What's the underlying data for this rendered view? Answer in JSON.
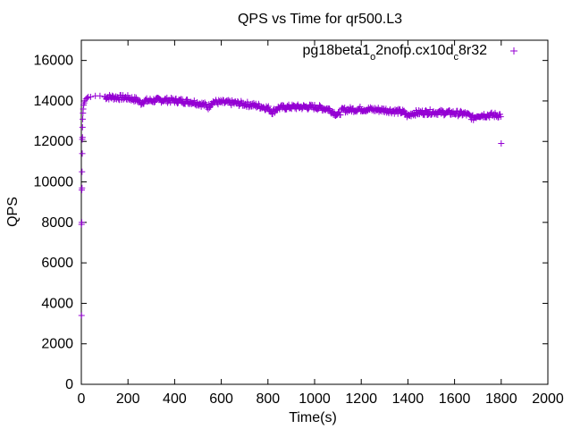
{
  "chart_data": {
    "type": "scatter",
    "title": "QPS vs Time for qr500.L3",
    "xlabel": "Time(s)",
    "ylabel": "QPS",
    "xlim": [
      0,
      2000
    ],
    "ylim": [
      0,
      17000
    ],
    "x_ticks": [
      0,
      200,
      400,
      600,
      800,
      1000,
      1200,
      1400,
      1600,
      1800,
      2000
    ],
    "y_ticks": [
      0,
      2000,
      4000,
      6000,
      8000,
      10000,
      12000,
      14000,
      16000
    ],
    "grid": false,
    "legend_position": "top-right",
    "legend_label_parts": [
      "pg18beta1",
      "o",
      "2nofp.cx10d",
      "c",
      "8r32"
    ],
    "series": [
      {
        "name": "pg18beta1_o2nofp.cx10d_c8r32",
        "color": "#9400d3",
        "marker": "+",
        "startup_points": [
          [
            1,
            3400
          ],
          [
            1,
            7900
          ],
          [
            2,
            8000
          ],
          [
            2,
            9600
          ],
          [
            3,
            9700
          ],
          [
            3,
            10500
          ],
          [
            4,
            11400
          ],
          [
            4,
            12100
          ],
          [
            5,
            12200
          ],
          [
            5,
            12700
          ],
          [
            6,
            13100
          ],
          [
            7,
            13400
          ],
          [
            8,
            13600
          ],
          [
            10,
            13800
          ],
          [
            12,
            13900
          ],
          [
            15,
            14000
          ],
          [
            20,
            14100
          ],
          [
            25,
            14150
          ],
          [
            30,
            14200
          ],
          [
            40,
            14200
          ],
          [
            60,
            14250
          ],
          [
            80,
            14250
          ]
        ],
        "trend": [
          [
            100,
            14200
          ],
          [
            200,
            14150
          ],
          [
            240,
            14050
          ],
          [
            255,
            13900
          ],
          [
            270,
            14000
          ],
          [
            350,
            14050
          ],
          [
            420,
            14000
          ],
          [
            480,
            13950
          ],
          [
            530,
            13800
          ],
          [
            545,
            13700
          ],
          [
            560,
            13950
          ],
          [
            650,
            13900
          ],
          [
            700,
            13850
          ],
          [
            760,
            13750
          ],
          [
            800,
            13650
          ],
          [
            820,
            13450
          ],
          [
            840,
            13650
          ],
          [
            900,
            13700
          ],
          [
            1000,
            13700
          ],
          [
            1060,
            13600
          ],
          [
            1100,
            13300
          ],
          [
            1120,
            13550
          ],
          [
            1200,
            13600
          ],
          [
            1300,
            13550
          ],
          [
            1380,
            13450
          ],
          [
            1400,
            13250
          ],
          [
            1420,
            13400
          ],
          [
            1500,
            13450
          ],
          [
            1600,
            13400
          ],
          [
            1650,
            13350
          ],
          [
            1680,
            13150
          ],
          [
            1700,
            13300
          ],
          [
            1800,
            13300
          ]
        ],
        "outliers": [
          [
            1800,
            11900
          ]
        ],
        "band_noise": 130
      }
    ]
  }
}
